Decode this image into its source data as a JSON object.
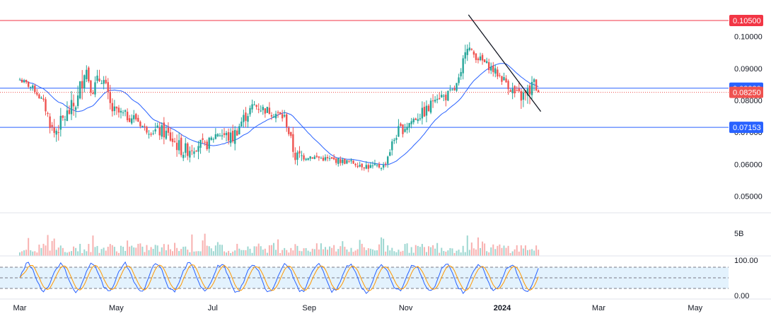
{
  "chart_data": {
    "type": "candlestick",
    "colors": {
      "up": "#26a69a",
      "down": "#ef5350",
      "ma": "#2962ff",
      "resistance": "#f23645",
      "support": "#2962ff",
      "trendline": "#131722",
      "stoch_k": "#2962ff",
      "stoch_d": "#ff9800",
      "stoch_band": "#e3f2fd",
      "close_line": "#ef5350",
      "divider": "#e0e3eb"
    },
    "price_axis": {
      "min": 0.045,
      "max": 0.107,
      "ticks": [
        "0.10000",
        "0.09000",
        "0.08000",
        "0.07000",
        "0.06000",
        "0.05000"
      ]
    },
    "time_axis": {
      "labels": [
        "Mar",
        "May",
        "Jul",
        "Sep",
        "Nov",
        "2024",
        "Mar",
        "May"
      ],
      "bold": [
        false,
        false,
        false,
        false,
        false,
        true,
        false,
        false
      ],
      "months": [
        0,
        2,
        4,
        6,
        8,
        10,
        12,
        14
      ]
    },
    "horizontal_levels": [
      {
        "value": 0.105,
        "label": "0.10500",
        "style": "resistance"
      },
      {
        "value": 0.0838,
        "label": "0.08380",
        "style": "support"
      },
      {
        "value": 0.07153,
        "label": "0.07153",
        "style": "support"
      }
    ],
    "last_price": {
      "value": 0.0825,
      "label": "0.08250"
    },
    "trendline": {
      "start": [
        9.3,
        0.1068
      ],
      "end": [
        10.8,
        0.0765
      ]
    },
    "anchors_high": [
      [
        0,
        0.088
      ],
      [
        0.3,
        0.085
      ],
      [
        0.5,
        0.081
      ],
      [
        0.7,
        0.074
      ],
      [
        0.9,
        0.078
      ],
      [
        1.2,
        0.085
      ],
      [
        1.35,
        0.098
      ],
      [
        1.5,
        0.086
      ],
      [
        1.7,
        0.093
      ],
      [
        1.9,
        0.08
      ],
      [
        2.2,
        0.078
      ],
      [
        2.4,
        0.077
      ],
      [
        2.6,
        0.073
      ],
      [
        3.0,
        0.074
      ],
      [
        3.4,
        0.068
      ],
      [
        3.7,
        0.07
      ],
      [
        3.85,
        0.068
      ],
      [
        4.1,
        0.073
      ],
      [
        4.4,
        0.072
      ],
      [
        4.6,
        0.077
      ],
      [
        4.85,
        0.081
      ],
      [
        5.0,
        0.08
      ],
      [
        5.2,
        0.079
      ],
      [
        5.5,
        0.077
      ],
      [
        5.7,
        0.066
      ],
      [
        6.0,
        0.064
      ],
      [
        6.4,
        0.063
      ],
      [
        6.9,
        0.062
      ],
      [
        7.3,
        0.061
      ],
      [
        7.55,
        0.061
      ],
      [
        7.8,
        0.073
      ],
      [
        8.2,
        0.077
      ],
      [
        8.5,
        0.081
      ],
      [
        8.6,
        0.085
      ],
      [
        8.8,
        0.084
      ],
      [
        9.0,
        0.085
      ],
      [
        9.15,
        0.09
      ],
      [
        9.25,
        0.103
      ],
      [
        9.35,
        0.097
      ],
      [
        9.7,
        0.093
      ],
      [
        10.1,
        0.088
      ],
      [
        10.3,
        0.085
      ],
      [
        10.5,
        0.086
      ],
      [
        10.65,
        0.09
      ],
      [
        10.75,
        0.0835
      ]
    ],
    "anchors_low": [
      [
        0,
        0.085
      ],
      [
        0.3,
        0.082
      ],
      [
        0.5,
        0.077
      ],
      [
        0.7,
        0.065
      ],
      [
        0.9,
        0.07
      ],
      [
        1.2,
        0.075
      ],
      [
        1.35,
        0.085
      ],
      [
        1.5,
        0.08
      ],
      [
        1.7,
        0.083
      ],
      [
        1.9,
        0.074
      ],
      [
        2.2,
        0.072
      ],
      [
        2.4,
        0.072
      ],
      [
        2.6,
        0.069
      ],
      [
        3.0,
        0.066
      ],
      [
        3.4,
        0.06
      ],
      [
        3.7,
        0.063
      ],
      [
        3.85,
        0.063
      ],
      [
        4.1,
        0.067
      ],
      [
        4.4,
        0.064
      ],
      [
        4.6,
        0.07
      ],
      [
        4.85,
        0.076
      ],
      [
        5.0,
        0.075
      ],
      [
        5.2,
        0.074
      ],
      [
        5.5,
        0.072
      ],
      [
        5.7,
        0.059
      ],
      [
        6.0,
        0.061
      ],
      [
        6.4,
        0.06
      ],
      [
        6.9,
        0.059
      ],
      [
        7.3,
        0.057
      ],
      [
        7.55,
        0.058
      ],
      [
        7.8,
        0.066
      ],
      [
        8.2,
        0.072
      ],
      [
        8.5,
        0.074
      ],
      [
        8.6,
        0.079
      ],
      [
        8.8,
        0.078
      ],
      [
        9.0,
        0.081
      ],
      [
        9.15,
        0.086
      ],
      [
        9.25,
        0.095
      ],
      [
        9.35,
        0.093
      ],
      [
        9.7,
        0.089
      ],
      [
        10.1,
        0.083
      ],
      [
        10.3,
        0.077
      ],
      [
        10.5,
        0.077
      ],
      [
        10.65,
        0.08
      ],
      [
        10.75,
        0.0825
      ]
    ],
    "volume": {
      "axis_label": "5B"
    },
    "stochastic": {
      "ticks": [
        "100.00",
        "0.00"
      ],
      "upper": 80,
      "lower": 20,
      "mid": 50
    }
  }
}
